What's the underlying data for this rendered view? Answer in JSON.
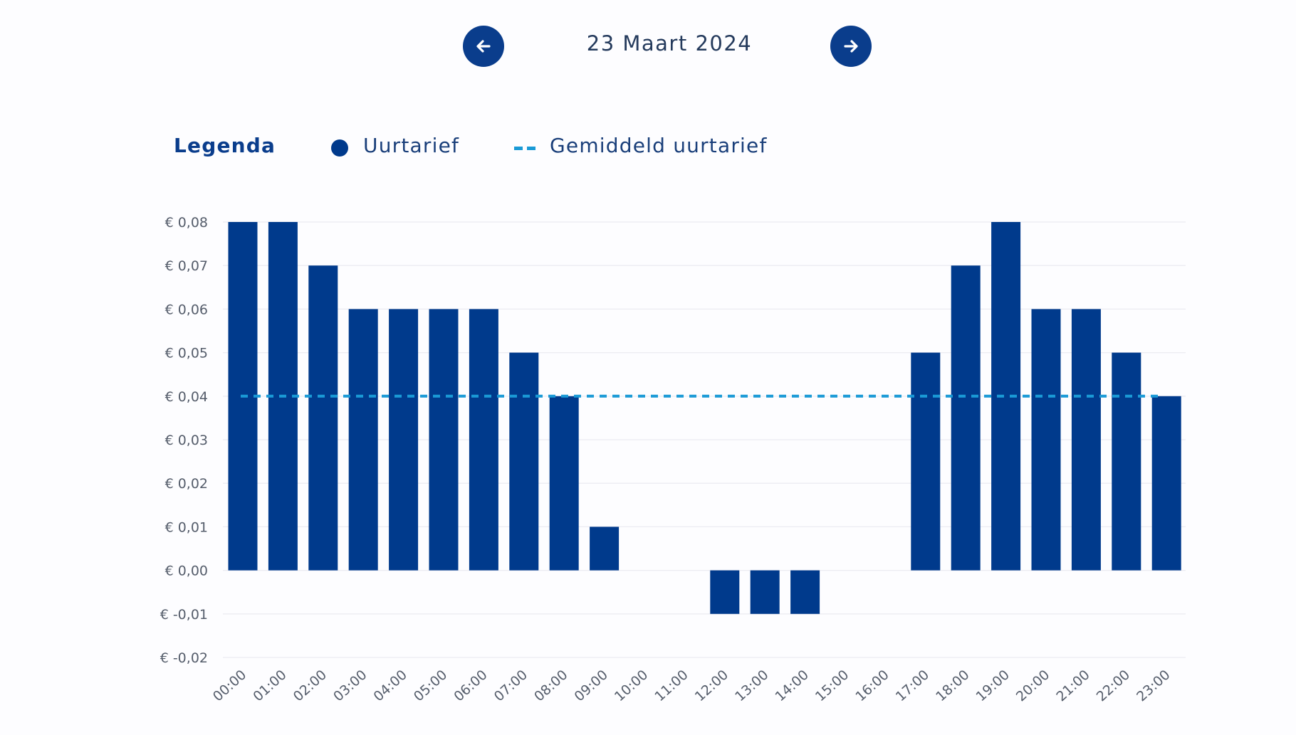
{
  "date_nav": {
    "date": "23 Maart 2024",
    "prev_icon": "arrow-left-icon",
    "next_icon": "arrow-right-icon"
  },
  "legend": {
    "title": "Legenda",
    "bar_label": "Uurtarief",
    "avg_label": "Gemiddeld uurtarief"
  },
  "colors": {
    "bar": "#003a8c",
    "average": "#1a9ad6",
    "nav_button": "#0a3d8c"
  },
  "chart_data": {
    "type": "bar",
    "categories": [
      "00:00",
      "01:00",
      "02:00",
      "03:00",
      "04:00",
      "05:00",
      "06:00",
      "07:00",
      "08:00",
      "09:00",
      "10:00",
      "11:00",
      "12:00",
      "13:00",
      "14:00",
      "15:00",
      "16:00",
      "17:00",
      "18:00",
      "19:00",
      "20:00",
      "21:00",
      "22:00",
      "23:00"
    ],
    "series": [
      {
        "name": "Uurtarief",
        "values": [
          0.08,
          0.08,
          0.07,
          0.06,
          0.06,
          0.06,
          0.06,
          0.05,
          0.04,
          0.01,
          0.0,
          0.0,
          -0.01,
          -0.01,
          -0.01,
          0.0,
          0.0,
          0.05,
          0.07,
          0.08,
          0.06,
          0.06,
          0.05,
          0.04
        ]
      },
      {
        "name": "Gemiddeld uurtarief",
        "type": "line",
        "value": 0.04
      }
    ],
    "y_ticks": [
      "€ 0,08",
      "€ 0,07",
      "€ 0,06",
      "€ 0,05",
      "€ 0,04",
      "€ 0,03",
      "€ 0,02",
      "€ 0,01",
      "€ 0,00",
      "€ -0,01",
      "€ -0,02"
    ],
    "y_tick_values": [
      0.08,
      0.07,
      0.06,
      0.05,
      0.04,
      0.03,
      0.02,
      0.01,
      0.0,
      -0.01,
      -0.02
    ],
    "ylim": [
      -0.02,
      0.08
    ],
    "grid": true,
    "legend_position": "top-left"
  }
}
